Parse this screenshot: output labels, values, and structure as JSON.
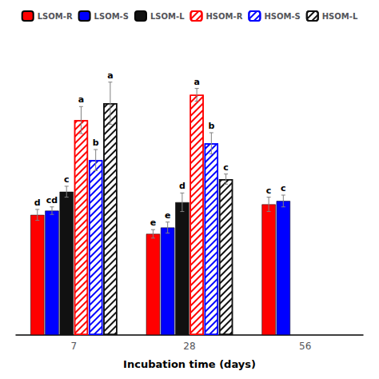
{
  "chart_data": {
    "type": "bar",
    "xlabel": "Incubation time (days)",
    "categories": [
      "7",
      "28",
      "56"
    ],
    "ylim": [
      0,
      0.7
    ],
    "tick_labels": "x",
    "grid": false,
    "legend": "top",
    "series": [
      {
        "name": "LSOM-R",
        "color": "#ff0000",
        "marker": "solid",
        "values": [
          0.285,
          0.24,
          0.31
        ],
        "errors": [
          0.013,
          0.01,
          0.017
        ],
        "annotations": [
          "d",
          "e",
          "c"
        ]
      },
      {
        "name": "LSOM-S",
        "color": "#0000ff",
        "marker": "solid",
        "values": [
          0.295,
          0.255,
          0.318
        ],
        "errors": [
          0.009,
          0.013,
          0.014
        ],
        "annotations": [
          "cd",
          "e",
          "c"
        ]
      },
      {
        "name": "LSOM-L",
        "color": "#111111",
        "marker": "solid",
        "values": [
          0.34,
          0.315,
          null
        ],
        "errors": [
          0.013,
          0.022,
          null
        ],
        "annotations": [
          "c",
          "d",
          null
        ]
      },
      {
        "name": "HSOM-R",
        "color": "#ff0000",
        "marker": "hatch",
        "values": [
          0.51,
          0.57,
          null
        ],
        "errors": [
          0.032,
          0.015,
          null
        ],
        "annotations": [
          "a",
          "a",
          null
        ]
      },
      {
        "name": "HSOM-S",
        "color": "#0000ff",
        "marker": "hatch",
        "values": [
          0.415,
          0.455,
          null
        ],
        "errors": [
          0.025,
          0.025,
          null
        ],
        "annotations": [
          "b",
          "b",
          null
        ]
      },
      {
        "name": "HSOM-L",
        "color": "#111111",
        "marker": "hatch",
        "values": [
          0.55,
          0.37,
          null
        ],
        "errors": [
          0.05,
          0.012,
          null
        ],
        "annotations": [
          "a",
          "c",
          null
        ]
      }
    ]
  }
}
